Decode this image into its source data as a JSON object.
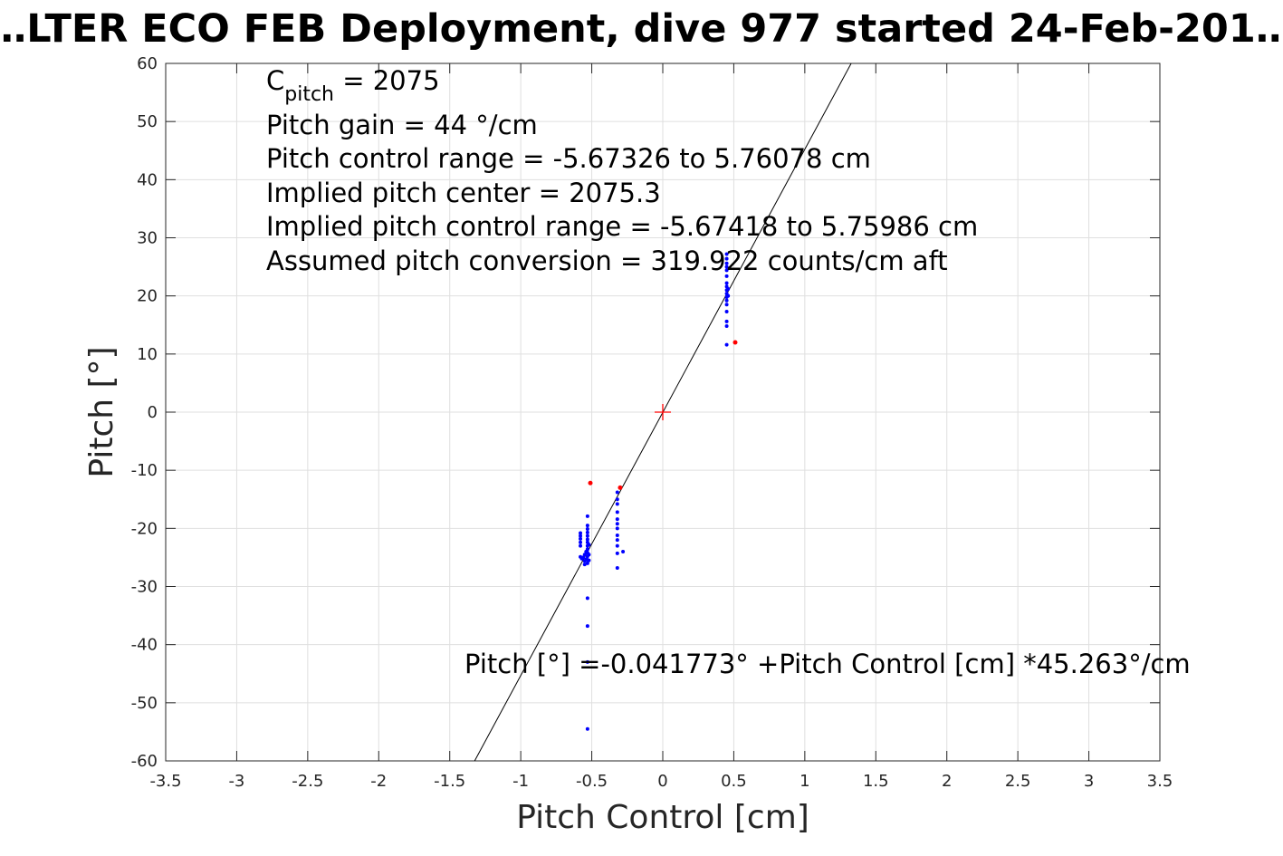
{
  "chart_data": {
    "type": "scatter",
    "title": "…LTER ECO FEB Deployment, dive 977 started 24-Feb-201…",
    "xlabel": "Pitch Control [cm]",
    "ylabel": "Pitch [°]",
    "xlim": [
      -3.5,
      3.5
    ],
    "ylim": [
      -60,
      60
    ],
    "x_ticks": [
      "-3.5",
      "-3",
      "-2.5",
      "-2",
      "-1.5",
      "-1",
      "-0.5",
      "0",
      "0.5",
      "1",
      "1.5",
      "2",
      "2.5",
      "3",
      "3.5"
    ],
    "y_ticks": [
      "60",
      "50",
      "40",
      "30",
      "20",
      "10",
      "0",
      "-10",
      "-20",
      "-30",
      "-40",
      "-50",
      "-60"
    ],
    "grid": true,
    "annotations": {
      "cpitch_main": "C",
      "cpitch_sub": "pitch",
      "cpitch_value": " = 2075",
      "gain": "Pitch gain = 44 °/cm",
      "control_range": "Pitch control range = -5.67326 to 5.76078 cm",
      "implied_center": "Implied pitch center = 2075.3",
      "implied_range": "Implied pitch control range = -5.67418 to 5.75986 cm",
      "conversion": "Assumed pitch conversion = 319.922 counts/cm aft",
      "fit_equation": "Pitch [°] =-0.041773° +Pitch Control [cm] *45.263°/cm"
    },
    "fit_line": {
      "intercept": -0.041773,
      "slope": 45.263
    },
    "center_marker": {
      "x": 0,
      "y": 0,
      "color": "#ff0000"
    },
    "colors": {
      "data": "#0000ff",
      "outliers": "#ff0000",
      "fit": "#000000",
      "grid": "#dfdfdf"
    },
    "series": [
      {
        "color": "#0000ff",
        "points": [
          [
            -0.58,
            -20.8
          ],
          [
            -0.58,
            -21.3
          ],
          [
            -0.58,
            -21.8
          ],
          [
            -0.58,
            -22.4
          ],
          [
            -0.58,
            -23.0
          ],
          [
            -0.58,
            -24.9
          ],
          [
            -0.57,
            -25.2
          ],
          [
            -0.56,
            -25.0
          ],
          [
            -0.55,
            -24.5
          ],
          [
            -0.55,
            -25.6
          ],
          [
            -0.55,
            -26.2
          ],
          [
            -0.54,
            -24.0
          ],
          [
            -0.54,
            -25.3
          ],
          [
            -0.53,
            -17.9
          ],
          [
            -0.53,
            -19.5
          ],
          [
            -0.53,
            -20.1
          ],
          [
            -0.53,
            -20.7
          ],
          [
            -0.53,
            -21.3
          ],
          [
            -0.53,
            -21.9
          ],
          [
            -0.53,
            -22.4
          ],
          [
            -0.53,
            -23.0
          ],
          [
            -0.53,
            -23.6
          ],
          [
            -0.53,
            -24.2
          ],
          [
            -0.53,
            -24.8
          ],
          [
            -0.53,
            -25.4
          ],
          [
            -0.53,
            -26.0
          ],
          [
            -0.52,
            -22.8
          ],
          [
            -0.52,
            -24.5
          ],
          [
            -0.52,
            -25.5
          ],
          [
            -0.53,
            -32.0
          ],
          [
            -0.53,
            -36.8
          ],
          [
            -0.53,
            -43.0
          ],
          [
            -0.53,
            -54.5
          ],
          [
            -0.32,
            -13.8
          ],
          [
            -0.32,
            -15.0
          ],
          [
            -0.32,
            -15.8
          ],
          [
            -0.32,
            -17.2
          ],
          [
            -0.32,
            -18.4
          ],
          [
            -0.32,
            -19.2
          ],
          [
            -0.32,
            -20.0
          ],
          [
            -0.32,
            -21.2
          ],
          [
            -0.32,
            -22.0
          ],
          [
            -0.32,
            -23.0
          ],
          [
            -0.32,
            -24.3
          ],
          [
            -0.32,
            -26.8
          ],
          [
            -0.28,
            -24.0
          ],
          [
            0.45,
            11.6
          ],
          [
            0.45,
            14.8
          ],
          [
            0.45,
            15.6
          ],
          [
            0.45,
            17.3
          ],
          [
            0.45,
            18.5
          ],
          [
            0.45,
            19.2
          ],
          [
            0.45,
            19.8
          ],
          [
            0.45,
            20.4
          ],
          [
            0.45,
            21.0
          ],
          [
            0.45,
            21.6
          ],
          [
            0.45,
            22.2
          ],
          [
            0.45,
            23.4
          ],
          [
            0.45,
            24.4
          ],
          [
            0.45,
            25.0
          ],
          [
            0.45,
            25.6
          ],
          [
            0.45,
            26.4
          ],
          [
            0.45,
            27.2
          ],
          [
            0.46,
            20.0
          ],
          [
            0.46,
            21.2
          ]
        ]
      },
      {
        "color": "#ff0000",
        "points": [
          [
            -0.51,
            -12.2
          ],
          [
            -0.3,
            -13.0
          ],
          [
            0.51,
            12.0
          ]
        ]
      }
    ]
  }
}
